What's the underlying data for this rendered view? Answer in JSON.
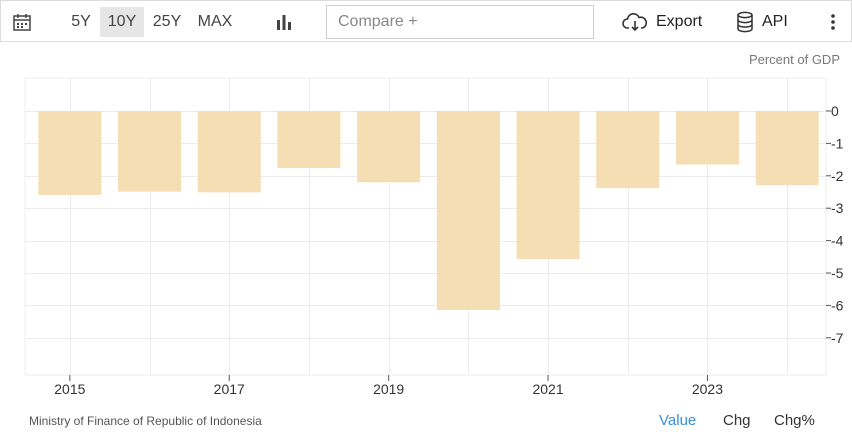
{
  "toolbar": {
    "calendar_icon": "calendar-icon",
    "ranges": [
      "5Y",
      "10Y",
      "25Y",
      "MAX"
    ],
    "active_range": "10Y",
    "chart_type_icon": "bar-chart-icon",
    "compare_placeholder": "Compare +",
    "export_label": "Export",
    "export_icon": "cloud-download-icon",
    "api_label": "API",
    "api_icon": "database-icon",
    "more_icon": "more-vertical-icon"
  },
  "unit_label": "Percent of GDP",
  "chart_data": {
    "type": "bar",
    "categories": [
      "2015",
      "2016",
      "2017",
      "2018",
      "2019",
      "2020",
      "2021",
      "2022",
      "2023",
      "2024"
    ],
    "values": [
      -2.59,
      -2.49,
      -2.51,
      -1.76,
      -2.2,
      -6.14,
      -4.57,
      -2.38,
      -1.65,
      -2.29
    ],
    "x_tick_labels": [
      "2015",
      "2017",
      "2019",
      "2021",
      "2023"
    ],
    "y_ticks": [
      0,
      -1,
      -2,
      -3,
      -4,
      -5,
      -6,
      -7
    ],
    "ylim": [
      -8,
      1
    ],
    "bar_color": "#f5deb3",
    "grid": true,
    "title": "",
    "xlabel": "",
    "ylabel": ""
  },
  "footer": {
    "source": "Ministry of Finance of Republic of Indonesia",
    "modes": [
      "Value",
      "Chg",
      "Chg%"
    ],
    "active_mode": "Value",
    "active_color": "#3b8fd6"
  }
}
